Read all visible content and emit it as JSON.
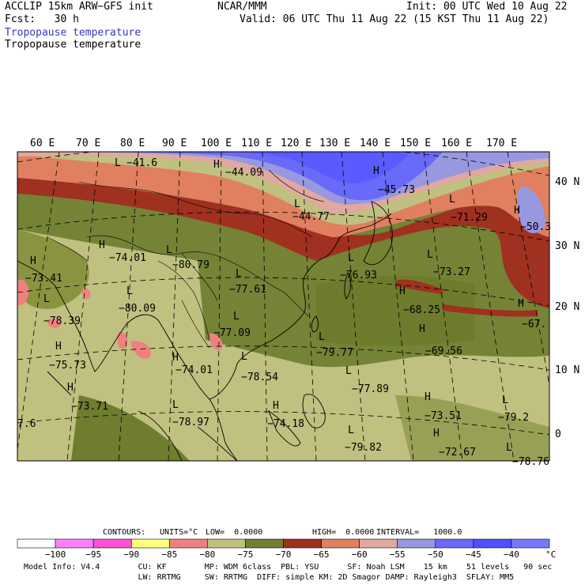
{
  "header": {
    "model_line": "ACCLIP 15km ARW−GFS init",
    "fcst_line": "Fcst:   30 h",
    "agency": "NCAR/MMM",
    "init": "Init: 00 UTC Wed 10 Aug 22",
    "valid": "Valid: 06 UTC Thu 11 Aug 22 (15 KST Thu 11 Aug 22)",
    "field_blue": "Tropopause temperature",
    "field_black": "Tropopause temperature"
  },
  "map": {
    "lon_labels": [
      "60 E",
      "70 E",
      "80 E",
      "90 E",
      "100 E",
      "110 E",
      "120 E",
      "130 E",
      "140 E",
      "150 E",
      "160 E",
      "170 E"
    ],
    "lat_labels": [
      "40 N",
      "30 N",
      "20 N",
      "10 N",
      "0"
    ],
    "extremes": [
      {
        "kind": "L",
        "value": "−41.6"
      },
      {
        "kind": "H",
        "value": "−44.09"
      },
      {
        "kind": "H",
        "value": "−45.73"
      },
      {
        "kind": "L",
        "value": "−44.77"
      },
      {
        "kind": "L",
        "value": "−71.29"
      },
      {
        "kind": "H",
        "value": "−50.3"
      },
      {
        "kind": "H",
        "value": "−74.01"
      },
      {
        "kind": "L",
        "value": "−80.79"
      },
      {
        "kind": "L",
        "value": "−77.61"
      },
      {
        "kind": "H",
        "value": "−73.41"
      },
      {
        "kind": "L",
        "value": "−80.09"
      },
      {
        "kind": "L",
        "value": "−78.39"
      },
      {
        "kind": "L",
        "value": "−76.93"
      },
      {
        "kind": "L",
        "value": "−73.27"
      },
      {
        "kind": "H",
        "value": "−68.25"
      },
      {
        "kind": "H",
        "value": "−67."
      },
      {
        "kind": "L",
        "value": "−77.09"
      },
      {
        "kind": "L",
        "value": "−79.77"
      },
      {
        "kind": "H",
        "value": "−69.56"
      },
      {
        "kind": "H",
        "value": "−75.73"
      },
      {
        "kind": "H",
        "value": "−74.01"
      },
      {
        "kind": "L",
        "value": "−78.54"
      },
      {
        "kind": "L",
        "value": "−77.89"
      },
      {
        "kind": "H",
        "value": "−73.71"
      },
      {
        "kind": "L",
        "value": "−78.97"
      },
      {
        "kind": "H",
        "value": "−74.18"
      },
      {
        "kind": "H",
        "value": "−73.51"
      },
      {
        "kind": "L",
        "value": "−79.2"
      },
      {
        "kind": "L",
        "value": "−79.82"
      },
      {
        "kind": "H",
        "value": "−72.67"
      },
      {
        "kind": "",
        "value": "7.6"
      },
      {
        "kind": "L",
        "value": "−78.76"
      }
    ]
  },
  "contour_info": {
    "contours": "CONTOURS:",
    "units": "UNITS=°C",
    "low": "LOW=  0.0000",
    "high": "HIGH=  0.0000",
    "interval": "INTERVAL=   1000.0"
  },
  "colorbar": {
    "colors": [
      "#ffffff",
      "#ff80ff",
      "#ff50d8",
      "#ffff80",
      "#f08080",
      "#c0c080",
      "#708030",
      "#a03020",
      "#e08060",
      "#e0a8a0",
      "#9898e0",
      "#6a6af8",
      "#5050ff",
      "#7878ff"
    ],
    "labels": [
      "−100",
      "−95",
      "−90",
      "−85",
      "−80",
      "−75",
      "−70",
      "−65",
      "−60",
      "−55",
      "−50",
      "−45",
      "−40"
    ],
    "unit": "°C"
  },
  "footer": {
    "line1": "Model Info: V4.4        CU: KF        MP: WDM 6class  PBL: YSU      SF: Noah LSM    15 km    51 levels   90 sec",
    "line2": "                        LW: RRTMG     SW: RRTMG  DIFF: simple KM: 2D Smagor DAMP: Rayleigh3  SFLAY: MM5"
  }
}
